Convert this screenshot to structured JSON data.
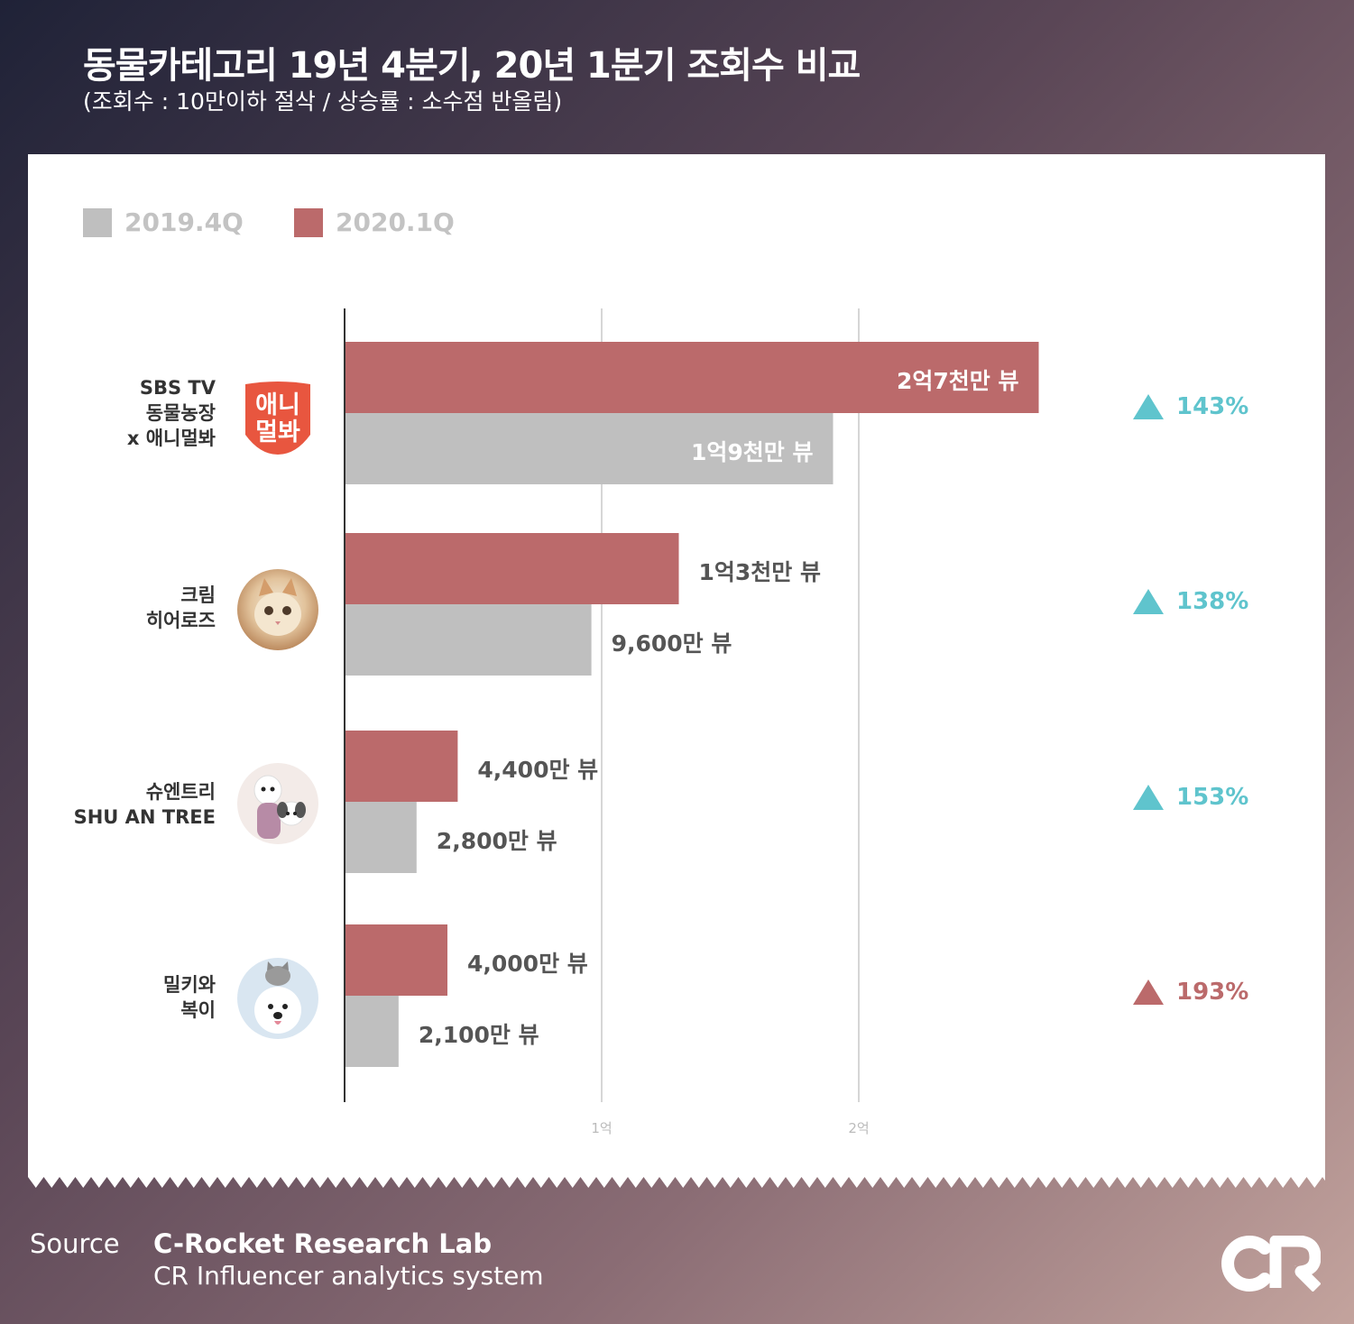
{
  "title": "동물카테고리 19년 4분기, 20년 1분기 조회수 비교",
  "subtitle": "(조회수 : 10만이하 절삭 / 상승률 : 소수점 반올림)",
  "colors": {
    "q4": "#bfbfbf",
    "q1": "#bb6a6b",
    "up": "#5fc4cd",
    "highlight": "#bb6a6b"
  },
  "chart_data": {
    "type": "bar",
    "orientation": "horizontal",
    "categories": [
      "SBS TV 동물농장 x 애니멀봐",
      "크림 히어로즈",
      "슈엔트리 SHU AN TREE",
      "밀키와 복이"
    ],
    "category_lines": [
      [
        "SBS TV",
        "동물농장",
        "x 애니멀봐"
      ],
      [
        "크림",
        "히어로즈"
      ],
      [
        "슈엔트리",
        "SHU AN TREE"
      ],
      [
        "밀키와",
        "복이"
      ]
    ],
    "series": [
      {
        "name": "2020.1Q",
        "values": [
          270000000,
          130000000,
          44000000,
          40000000
        ],
        "labels": [
          "2억7천만 뷰",
          "1억3천만 뷰",
          "4,400만 뷰",
          "4,000만 뷰"
        ]
      },
      {
        "name": "2019.4Q",
        "values": [
          190000000,
          96000000,
          28000000,
          21000000
        ],
        "labels": [
          "1억9천만 뷰",
          "9,600만 뷰",
          "2,800만 뷰",
          "2,100만 뷰"
        ]
      }
    ],
    "growth_rates": [
      "143%",
      "138%",
      "153%",
      "193%"
    ],
    "xlim": [
      0,
      300000000
    ],
    "xticks": [
      {
        "value": 100000000,
        "label": "1억"
      },
      {
        "value": 200000000,
        "label": "2억"
      }
    ],
    "grid": true,
    "legend": "top-left"
  },
  "logo_text": "애니멀봐",
  "source": {
    "key": "Source",
    "line1": "C-Rocket Research Lab",
    "line2": "CR Influencer analytics system"
  },
  "brand_mark": "CR"
}
